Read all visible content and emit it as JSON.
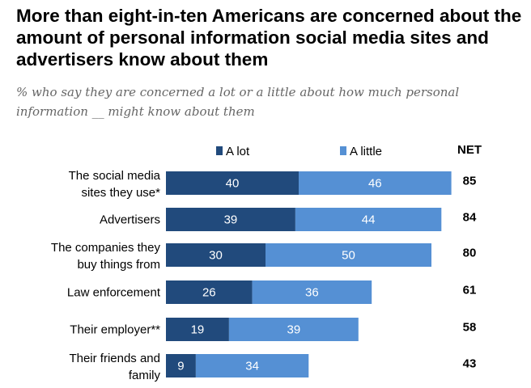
{
  "title": "More than eight-in-ten Americans are concerned about the amount of personal information social media sites and advertisers know about them",
  "subtitle": "% who say they are concerned a lot or a little about how much personal information __ might know about them",
  "chart_data": {
    "type": "bar",
    "orientation": "horizontal",
    "stacked": true,
    "categories": [
      [
        "The social media",
        "sites they use*"
      ],
      [
        "Advertisers"
      ],
      [
        "The companies they",
        "buy things from"
      ],
      [
        "Law enforcement"
      ],
      [
        "Their employer**"
      ],
      [
        "Their friends and",
        "family"
      ]
    ],
    "series": [
      {
        "name": "A lot",
        "color": "#214a7c",
        "values": [
          40,
          39,
          30,
          26,
          19,
          9
        ]
      },
      {
        "name": "A little",
        "color": "#5590d4",
        "values": [
          46,
          44,
          50,
          36,
          39,
          34
        ]
      }
    ],
    "net_header": "NET",
    "net": [
      85,
      84,
      80,
      61,
      58,
      43
    ],
    "grid": false,
    "legend": "top"
  }
}
